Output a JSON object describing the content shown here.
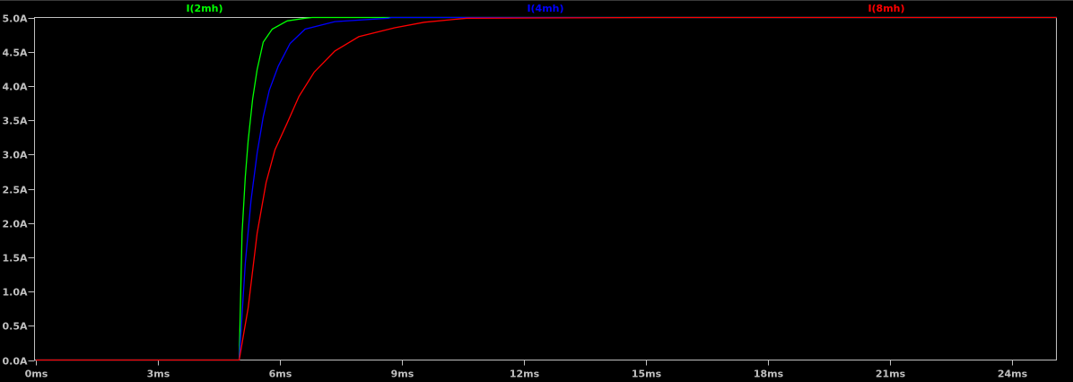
{
  "chart_data": {
    "type": "line",
    "title": "",
    "xlabel": "",
    "ylabel": "",
    "xlim": [
      0,
      25.1
    ],
    "ylim": [
      0,
      5.0
    ],
    "grid": false,
    "legend_placement": "top",
    "x_ticks": [
      "0ms",
      "3ms",
      "6ms",
      "9ms",
      "12ms",
      "15ms",
      "18ms",
      "21ms",
      "24ms"
    ],
    "x_tick_values": [
      0,
      3,
      6,
      9,
      12,
      15,
      18,
      21,
      24
    ],
    "y_ticks": [
      "0.0A",
      "0.5A",
      "1.0A",
      "1.5A",
      "2.0A",
      "2.5A",
      "3.0A",
      "3.5A",
      "4.0A",
      "4.5A",
      "5.0A"
    ],
    "y_tick_values": [
      0,
      0.5,
      1.0,
      1.5,
      2.0,
      2.5,
      3.0,
      3.5,
      4.0,
      4.5,
      5.0
    ],
    "background": "#000000",
    "axis_color": "#c0c0c0",
    "series": [
      {
        "name": "I(2mh)",
        "color": "#00ff00",
        "x": [
          0,
          5.0,
          5.07,
          5.15,
          5.22,
          5.33,
          5.44,
          5.59,
          5.81,
          6.18,
          6.62,
          6.79,
          25.1
        ],
        "y": [
          0,
          0,
          1.85,
          2.67,
          3.2,
          3.81,
          4.24,
          4.64,
          4.83,
          4.95,
          4.99,
          5.0,
          5.0
        ]
      },
      {
        "name": "I(4mh)",
        "color": "#0000ff",
        "x": [
          0,
          5.0,
          5.15,
          5.29,
          5.44,
          5.59,
          5.74,
          5.96,
          6.25,
          6.62,
          7.35,
          8.67,
          8.74,
          25.1
        ],
        "y": [
          0,
          0,
          1.41,
          2.33,
          3.02,
          3.55,
          3.94,
          4.29,
          4.62,
          4.83,
          4.94,
          4.99,
          5.0,
          5.0
        ]
      },
      {
        "name": "I(8mh)",
        "color": "#ff0000",
        "x": [
          0,
          5.0,
          5.22,
          5.44,
          5.66,
          5.88,
          6.18,
          6.47,
          6.84,
          7.35,
          7.94,
          8.82,
          9.55,
          10.6,
          15.07,
          25.1
        ],
        "y": [
          0,
          0,
          0.76,
          1.85,
          2.59,
          3.07,
          3.46,
          3.85,
          4.2,
          4.51,
          4.72,
          4.85,
          4.93,
          4.99,
          5.0,
          5.0
        ]
      }
    ]
  }
}
